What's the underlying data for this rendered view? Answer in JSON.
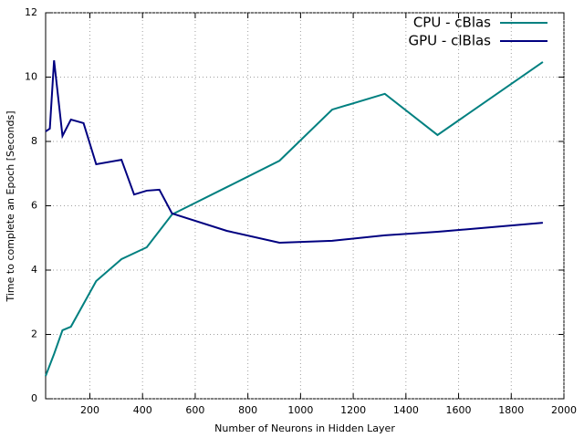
{
  "chart_data": {
    "type": "line",
    "x_label": "Number of Neurons in Hidden Layer",
    "y_label": "Time to complete an Epoch [Seconds]",
    "series": [
      {
        "name": "CPU - cBlas",
        "color": "#008080",
        "x": [
          32,
          64,
          96,
          128,
          224,
          320,
          416,
          512,
          720,
          920,
          1120,
          1320,
          1520,
          1920
        ],
        "values": [
          0.71,
          1.39,
          2.13,
          2.24,
          3.66,
          4.34,
          4.71,
          5.73,
          6.58,
          7.4,
          8.99,
          9.48,
          8.2,
          10.47
        ]
      },
      {
        "name": "GPU - clBlas",
        "color": "#000080",
        "x": [
          32,
          48,
          64,
          96,
          128,
          176,
          224,
          320,
          368,
          416,
          464,
          512,
          720,
          920,
          1120,
          1320,
          1520,
          1920
        ],
        "values": [
          8.31,
          8.4,
          10.52,
          8.17,
          8.68,
          8.57,
          7.29,
          7.43,
          6.35,
          6.47,
          6.5,
          5.76,
          5.22,
          4.85,
          4.91,
          5.08,
          5.19,
          5.47
        ]
      }
    ],
    "xlim": [
      32,
      2000
    ],
    "ylim": [
      0,
      12
    ],
    "xticks": [
      200,
      400,
      600,
      800,
      1000,
      1200,
      1400,
      1600,
      1800,
      2000
    ],
    "yticks": [
      0,
      2,
      4,
      6,
      8,
      10,
      12
    ],
    "grid": true,
    "legend": "top-right"
  }
}
